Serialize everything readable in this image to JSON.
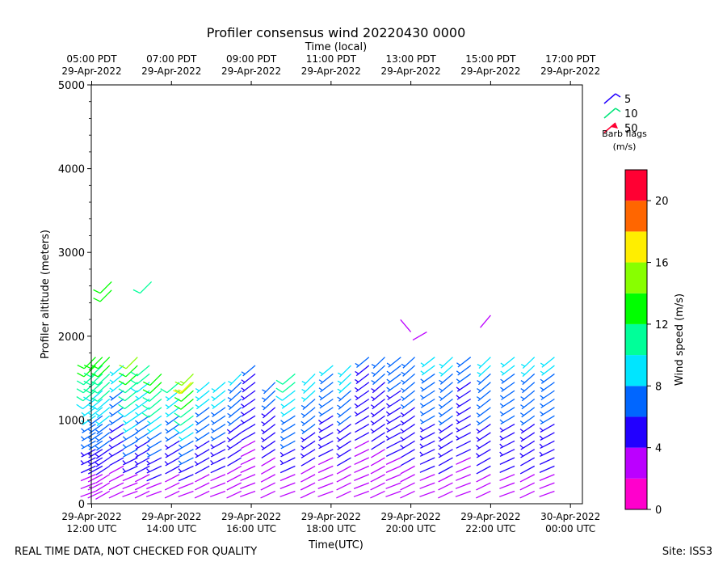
{
  "chart_data": {
    "type": "wind-barb-profile",
    "title": "Profiler consensus wind 20220430 0000",
    "top_axis_label": "Time (local)",
    "xlabel": "Time(UTC)",
    "ylabel": "Profiler altitude (meters)",
    "xlim_hours_utc": [
      11.99,
      24.3
    ],
    "ylim": [
      0,
      5000
    ],
    "y_ticks": [
      0,
      1000,
      2000,
      3000,
      4000,
      5000
    ],
    "x_ticks_utc": [
      {
        "hour": 12,
        "line1": "29-Apr-2022",
        "line2": "12:00 UTC"
      },
      {
        "hour": 14,
        "line1": "29-Apr-2022",
        "line2": "14:00 UTC"
      },
      {
        "hour": 16,
        "line1": "29-Apr-2022",
        "line2": "16:00 UTC"
      },
      {
        "hour": 18,
        "line1": "29-Apr-2022",
        "line2": "18:00 UTC"
      },
      {
        "hour": 20,
        "line1": "29-Apr-2022",
        "line2": "20:00 UTC"
      },
      {
        "hour": 22,
        "line1": "29-Apr-2022",
        "line2": "22:00 UTC"
      },
      {
        "hour": 24,
        "line1": "30-Apr-2022",
        "line2": "00:00 UTC"
      }
    ],
    "x_ticks_local": [
      {
        "hour": 12,
        "line1": "05:00 PDT",
        "line2": "29-Apr-2022"
      },
      {
        "hour": 14,
        "line1": "07:00 PDT",
        "line2": "29-Apr-2022"
      },
      {
        "hour": 16,
        "line1": "09:00 PDT",
        "line2": "29-Apr-2022"
      },
      {
        "hour": 18,
        "line1": "11:00 PDT",
        "line2": "29-Apr-2022"
      },
      {
        "hour": 20,
        "line1": "13:00 PDT",
        "line2": "29-Apr-2022"
      },
      {
        "hour": 22,
        "line1": "15:00 PDT",
        "line2": "29-Apr-2022"
      },
      {
        "hour": 24,
        "line1": "17:00 PDT",
        "line2": "29-Apr-2022"
      }
    ],
    "colorbar": {
      "label": "Wind speed (m/s)",
      "range": [
        0,
        22
      ],
      "tick_values": [
        0,
        4,
        8,
        12,
        16,
        20
      ],
      "bins": [
        {
          "from": 0,
          "to": 2,
          "color": "#ff00cc"
        },
        {
          "from": 2,
          "to": 4,
          "color": "#bb00ff"
        },
        {
          "from": 4,
          "to": 6,
          "color": "#2200ff"
        },
        {
          "from": 6,
          "to": 8,
          "color": "#0066ff"
        },
        {
          "from": 8,
          "to": 10,
          "color": "#00e5ff"
        },
        {
          "from": 10,
          "to": 12,
          "color": "#00ff99"
        },
        {
          "from": 12,
          "to": 14,
          "color": "#00ff00"
        },
        {
          "from": 14,
          "to": 16,
          "color": "#88ff00"
        },
        {
          "from": 16,
          "to": 18,
          "color": "#ffee00"
        },
        {
          "from": 18,
          "to": 20,
          "color": "#ff6600"
        },
        {
          "from": 20,
          "to": 22,
          "color": "#ff0033"
        }
      ]
    },
    "legend": {
      "items": [
        {
          "label": "5",
          "color": "#2200ff"
        },
        {
          "label": "10",
          "color": "#00e57a"
        },
        {
          "label": "50",
          "color": "#ff0033"
        }
      ],
      "title_line1": "Barb flags",
      "title_line2": "(m/s)"
    },
    "gate_altitudes_m": [
      150,
      250,
      350,
      450,
      550,
      650,
      750,
      850,
      950,
      1050,
      1150,
      1250,
      1350,
      1450,
      1550,
      1650,
      1750
    ],
    "profiles": [
      {
        "hour": 12.1,
        "top_m": 1750,
        "speed_low": 2.5,
        "speed_high": 13,
        "dir_low": 250,
        "dir_high": 225
      },
      {
        "hour": 12.27,
        "top_m": 1750,
        "speed_low": 2.5,
        "speed_high": 12,
        "dir_low": 245,
        "dir_high": 225
      },
      {
        "hour": 12.45,
        "top_m": 1750,
        "speed_low": 2.5,
        "speed_high": 13,
        "dir_low": 240,
        "dir_high": 225
      },
      {
        "hour": 12.8,
        "top_m": 1650,
        "speed_low": 2.5,
        "speed_high": 9,
        "dir_low": 245,
        "dir_high": 230
      },
      {
        "hour": 13.15,
        "top_m": 1750,
        "speed_low": 2.5,
        "speed_high": 14,
        "dir_low": 250,
        "dir_high": 225
      },
      {
        "hour": 13.45,
        "top_m": 1650,
        "speed_low": 2.5,
        "speed_high": 11,
        "dir_low": 245,
        "dir_high": 230
      },
      {
        "hour": 13.75,
        "top_m": 1550,
        "speed_low": 2.5,
        "speed_high": 13,
        "dir_low": 250,
        "dir_high": 225
      },
      {
        "hour": 14.2,
        "top_m": 1450,
        "speed_low": 2.5,
        "speed_high": 10,
        "dir_low": 245,
        "dir_high": 230
      },
      {
        "hour": 14.55,
        "top_m": 1550,
        "speed_low": 2.5,
        "speed_high": 15,
        "dir_low": 250,
        "dir_high": 225
      },
      {
        "hour": 14.95,
        "top_m": 1450,
        "speed_low": 2.5,
        "speed_high": 9,
        "dir_low": 245,
        "dir_high": 230
      },
      {
        "hour": 15.35,
        "top_m": 1450,
        "speed_low": 2.5,
        "speed_high": 9,
        "dir_low": 250,
        "dir_high": 230
      },
      {
        "hour": 15.75,
        "top_m": 1550,
        "speed_low": 2.5,
        "speed_high": 8,
        "dir_low": 245,
        "dir_high": 225
      },
      {
        "hour": 16.1,
        "top_m": 1650,
        "speed_low": 2.5,
        "speed_high": 6,
        "dir_low": 250,
        "dir_high": 230
      },
      {
        "hour": 16.6,
        "top_m": 1450,
        "speed_low": 2.5,
        "speed_high": 7,
        "dir_low": 245,
        "dir_high": 225
      },
      {
        "hour": 17.1,
        "top_m": 1550,
        "speed_low": 2.5,
        "speed_high": 11,
        "dir_low": 250,
        "dir_high": 230
      },
      {
        "hour": 17.6,
        "top_m": 1550,
        "speed_low": 2.5,
        "speed_high": 9,
        "dir_low": 245,
        "dir_high": 225
      },
      {
        "hour": 18.05,
        "top_m": 1650,
        "speed_low": 2.5,
        "speed_high": 8,
        "dir_low": 250,
        "dir_high": 230
      },
      {
        "hour": 18.5,
        "top_m": 1650,
        "speed_low": 2.5,
        "speed_high": 9,
        "dir_low": 245,
        "dir_high": 225
      },
      {
        "hour": 18.95,
        "top_m": 1750,
        "speed_low": 2.5,
        "speed_high": 6,
        "dir_low": 250,
        "dir_high": 230
      },
      {
        "hour": 19.35,
        "top_m": 1850,
        "speed_low": 2.5,
        "speed_high": 7,
        "dir_low": 245,
        "dir_high": 225
      },
      {
        "hour": 19.75,
        "top_m": 1850,
        "speed_low": 3,
        "speed_high": 7,
        "dir_low": 250,
        "dir_high": 230
      },
      {
        "hour": 20.1,
        "top_m": 1950,
        "speed_low": 3,
        "speed_high": 8,
        "dir_low": 245,
        "dir_high": 225
      },
      {
        "hour": 20.6,
        "top_m": 1950,
        "speed_low": 3,
        "speed_high": 9,
        "dir_low": 250,
        "dir_high": 230
      },
      {
        "hour": 21.05,
        "top_m": 1950,
        "speed_low": 3,
        "speed_high": 9,
        "dir_low": 245,
        "dir_high": 225
      },
      {
        "hour": 21.5,
        "top_m": 1950,
        "speed_low": 3,
        "speed_high": 7,
        "dir_low": 250,
        "dir_high": 230
      },
      {
        "hour": 22.0,
        "top_m": 1850,
        "speed_low": 3,
        "speed_high": 9,
        "dir_low": 245,
        "dir_high": 225
      },
      {
        "hour": 22.6,
        "top_m": 1850,
        "speed_low": 3,
        "speed_high": 9,
        "dir_low": 250,
        "dir_high": 230
      },
      {
        "hour": 23.1,
        "top_m": 1850,
        "speed_low": 3,
        "speed_high": 9,
        "dir_low": 245,
        "dir_high": 225
      },
      {
        "hour": 23.6,
        "top_m": 1850,
        "speed_low": 3,
        "speed_high": 9,
        "dir_low": 250,
        "dir_high": 230
      }
    ],
    "isolated_barbs": [
      {
        "hour": 12.5,
        "alt_m": 2550,
        "speed": 13,
        "dir": 225
      },
      {
        "hour": 12.5,
        "alt_m": 2650,
        "speed": 13,
        "dir": 225
      },
      {
        "hour": 13.5,
        "alt_m": 2650,
        "speed": 11,
        "dir": 225
      },
      {
        "hour": 14.5,
        "alt_m": 1450,
        "speed": 16,
        "dir": 225
      },
      {
        "hour": 20.0,
        "alt_m": 2050,
        "speed": 2,
        "dir": 320
      },
      {
        "hour": 20.4,
        "alt_m": 2050,
        "speed": 2,
        "dir": 240
      },
      {
        "hour": 22.0,
        "alt_m": 2250,
        "speed": 2,
        "dir": 220
      }
    ]
  },
  "footer": {
    "left_note": "REAL TIME DATA, NOT CHECKED FOR QUALITY",
    "site": "Site: ISS3"
  }
}
